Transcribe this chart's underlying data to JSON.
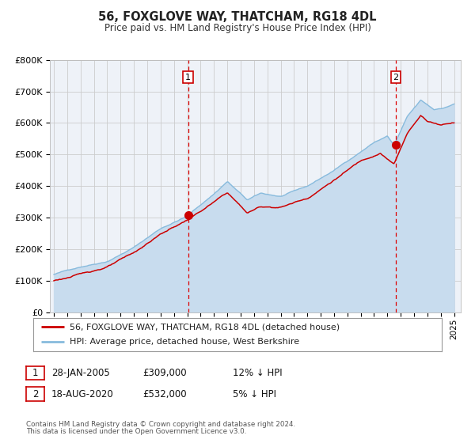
{
  "title": "56, FOXGLOVE WAY, THATCHAM, RG18 4DL",
  "subtitle": "Price paid vs. HM Land Registry's House Price Index (HPI)",
  "legend_label_red": "56, FOXGLOVE WAY, THATCHAM, RG18 4DL (detached house)",
  "legend_label_blue": "HPI: Average price, detached house, West Berkshire",
  "annotation1_date": "28-JAN-2005",
  "annotation1_price": "£309,000",
  "annotation1_hpi": "12% ↓ HPI",
  "annotation2_date": "18-AUG-2020",
  "annotation2_price": "£532,000",
  "annotation2_hpi": "5% ↓ HPI",
  "footnote1": "Contains HM Land Registry data © Crown copyright and database right 2024.",
  "footnote2": "This data is licensed under the Open Government Licence v3.0.",
  "red_color": "#cc0000",
  "blue_color": "#88bbdd",
  "blue_fill_color": "#c8dcee",
  "vline_color": "#dd0000",
  "dot_color": "#cc0000",
  "bg_color": "#ffffff",
  "chart_bg": "#eef2f8",
  "grid_color": "#cccccc",
  "ylim": [
    0,
    800000
  ],
  "yticks": [
    0,
    100000,
    200000,
    300000,
    400000,
    500000,
    600000,
    700000,
    800000
  ],
  "x_start_year": 1995,
  "x_end_year": 2025,
  "sale1_year": 2005.07,
  "sale1_price": 309000,
  "sale2_year": 2020.63,
  "sale2_price": 532000,
  "n_points": 360
}
